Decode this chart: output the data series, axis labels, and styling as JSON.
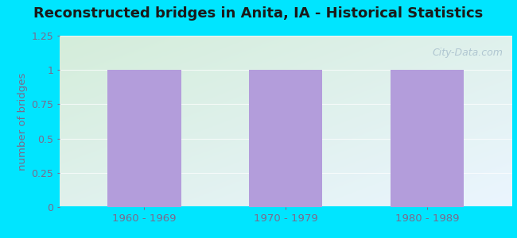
{
  "title": "Reconstructed bridges in Anita, IA - Historical Statistics",
  "categories": [
    "1960 - 1969",
    "1970 - 1979",
    "1980 - 1989"
  ],
  "values": [
    1,
    1,
    1
  ],
  "bar_color": "#b39ddb",
  "ylabel": "number of bridges",
  "ylim": [
    0,
    1.25
  ],
  "yticks": [
    0,
    0.25,
    0.5,
    0.75,
    1,
    1.25
  ],
  "bg_outer": "#00e5ff",
  "bg_plot_topleft": "#d4edda",
  "bg_plot_topright": "#e8f4fd",
  "bg_plot_bottomleft": "#c8e6c9",
  "bg_plot_bottomright": "#ffffff",
  "title_fontsize": 13,
  "axis_label_color": "#7b6a8d",
  "tick_label_color": "#7b6a8d",
  "watermark": "City-Data.com",
  "grid_color": "#e0e0e0"
}
